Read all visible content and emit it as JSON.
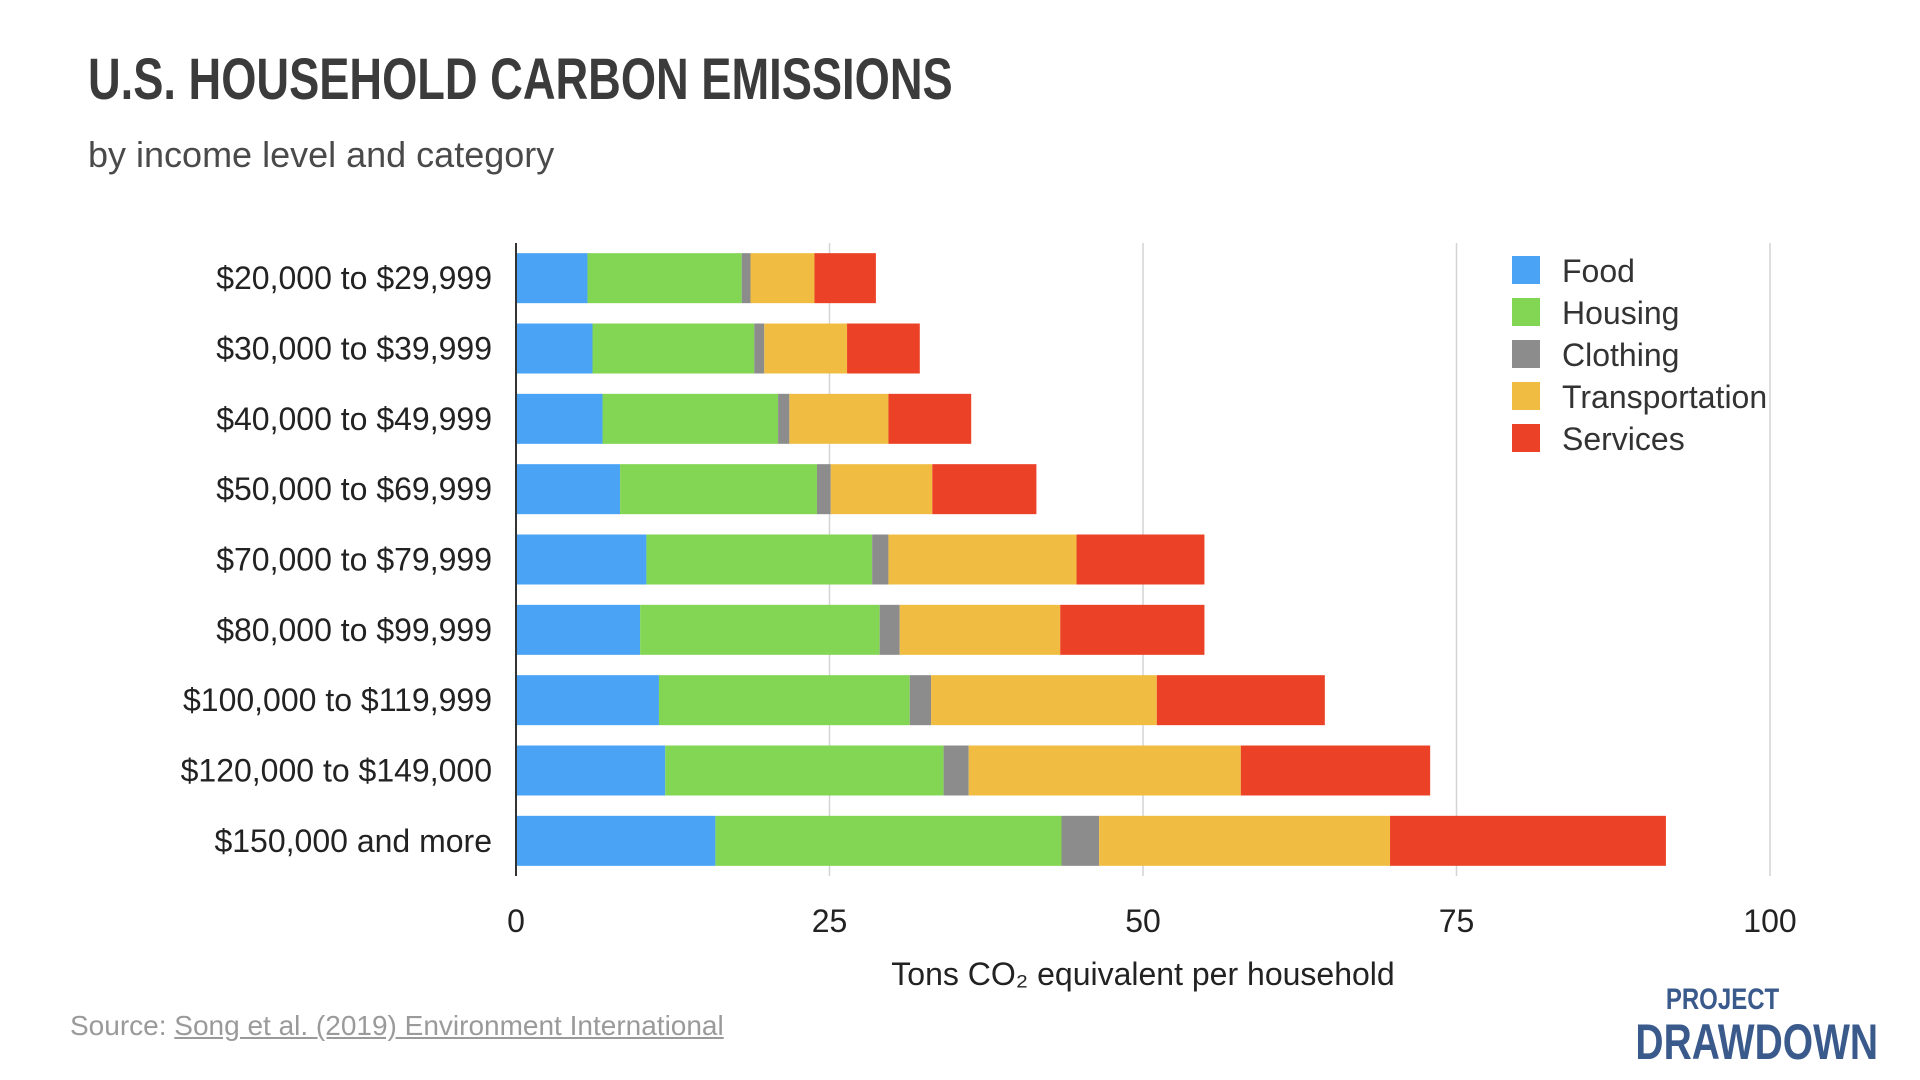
{
  "header": {
    "title": "U.S. HOUSEHOLD CARBON EMISSIONS",
    "subtitle": "by income level and category"
  },
  "footer": {
    "source_prefix": "Source: ",
    "source_link": "Song et al. (2019) Environment International",
    "logo_line1": "PROJECT",
    "logo_line2": "DRAWDOWN"
  },
  "colors": {
    "Food": "#4aa3f5",
    "Housing": "#82d654",
    "Clothing": "#8c8c8c",
    "Transportation": "#f0bd42",
    "Services": "#eb4126"
  },
  "chart_data": {
    "type": "bar",
    "orientation": "horizontal",
    "stacked": true,
    "title": "U.S. HOUSEHOLD CARBON EMISSIONS",
    "subtitle": "by income level and category",
    "xlabel": "Tons CO₂ equivalent per household",
    "ylabel": "",
    "xlim": [
      0,
      100
    ],
    "xticks": [
      0,
      25,
      50,
      75,
      100
    ],
    "grid": true,
    "legend_position": "top-right",
    "categories": [
      "$20,000 to $29,999",
      "$30,000 to $39,999",
      "$40,000 to $49,999",
      "$50,000 to $69,999",
      "$70,000 to $79,999",
      "$80,000 to $99,999",
      "$100,000 to $119,999",
      "$120,000 to $149,000",
      "$150,000 and more"
    ],
    "series": [
      {
        "name": "Food",
        "values": [
          5.7,
          6.1,
          6.9,
          8.3,
          10.4,
          9.9,
          11.4,
          11.9,
          15.9
        ]
      },
      {
        "name": "Housing",
        "values": [
          12.3,
          12.9,
          14.0,
          15.7,
          18.0,
          19.1,
          20.0,
          22.2,
          27.6
        ]
      },
      {
        "name": "Clothing",
        "values": [
          0.7,
          0.8,
          0.9,
          1.1,
          1.3,
          1.6,
          1.7,
          2.0,
          3.0
        ]
      },
      {
        "name": "Transportation",
        "values": [
          5.1,
          6.6,
          7.9,
          8.1,
          15.0,
          12.8,
          18.0,
          21.7,
          23.2
        ]
      },
      {
        "name": "Services",
        "values": [
          4.9,
          5.8,
          6.6,
          8.3,
          10.2,
          11.5,
          13.4,
          15.1,
          22.0
        ]
      }
    ]
  }
}
